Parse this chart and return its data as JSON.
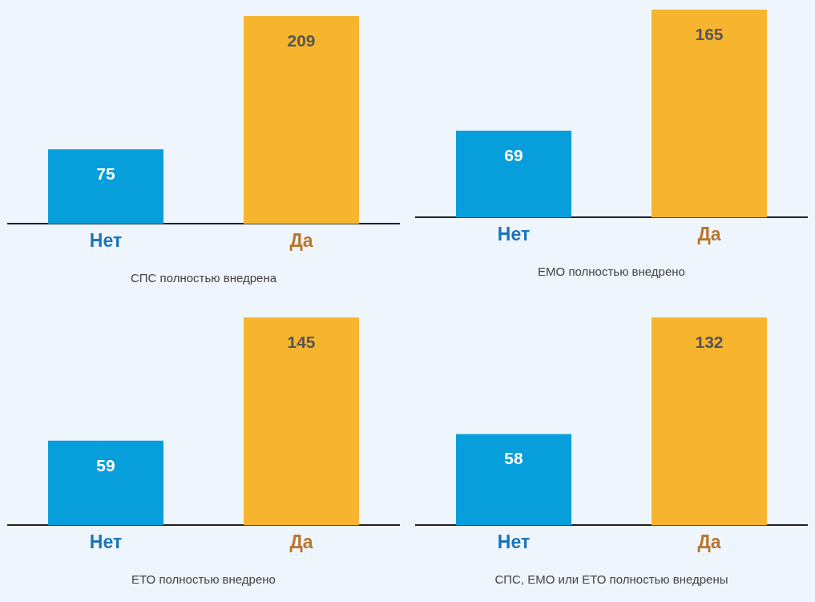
{
  "chart_data": [
    {
      "type": "bar",
      "categories": [
        "Нет",
        "Да"
      ],
      "values": [
        75,
        209
      ],
      "colors": [
        "#069fdb",
        "#f7b52f"
      ],
      "xlabel": "СПС полностью внедрена",
      "data_labels": true,
      "legend": false,
      "grid": false
    },
    {
      "type": "bar",
      "categories": [
        "Нет",
        "Да"
      ],
      "values": [
        69,
        165
      ],
      "colors": [
        "#069fdb",
        "#f7b52f"
      ],
      "xlabel": "ЕМО полностью внедрено",
      "data_labels": true,
      "legend": false,
      "grid": false
    },
    {
      "type": "bar",
      "categories": [
        "Нет",
        "Да"
      ],
      "values": [
        59,
        145
      ],
      "colors": [
        "#069fdb",
        "#f7b52f"
      ],
      "xlabel": "ЕТО полностью внедрено",
      "data_labels": true,
      "legend": false,
      "grid": false
    },
    {
      "type": "bar",
      "categories": [
        "Нет",
        "Да"
      ],
      "values": [
        58,
        132
      ],
      "colors": [
        "#069fdb",
        "#f7b52f"
      ],
      "xlabel": "СПС, ЕМО или ЕТО полностью внедрены",
      "data_labels": true,
      "legend": false,
      "grid": false
    }
  ]
}
